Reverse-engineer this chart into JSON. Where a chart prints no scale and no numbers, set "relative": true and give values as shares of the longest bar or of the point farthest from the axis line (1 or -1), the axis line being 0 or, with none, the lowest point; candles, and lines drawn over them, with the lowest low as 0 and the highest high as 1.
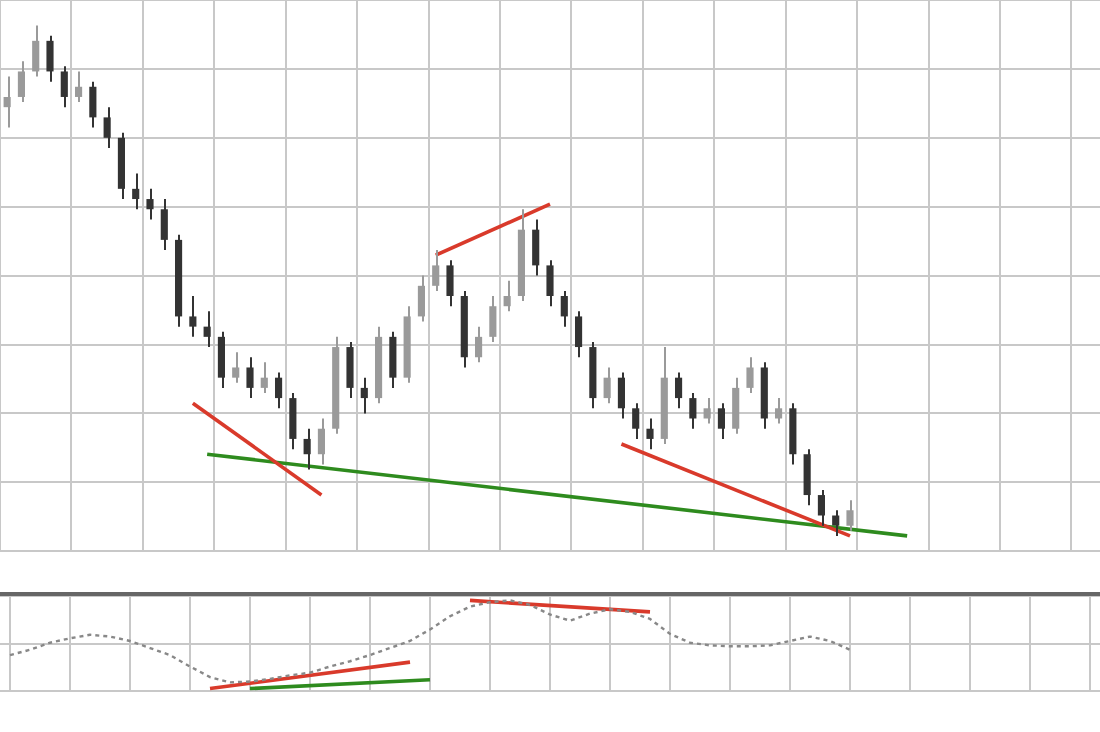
{
  "chart_data": [
    {
      "type": "candlestick",
      "relative": true,
      "grid": true,
      "legend": false,
      "colors": [
        "#9a9a9a",
        "#9a9a9a",
        "#9a9a9a",
        "#333333",
        "#333333",
        "#9a9a9a",
        "#333333",
        "#333333",
        "#333333",
        "#333333",
        "#333333",
        "#333333",
        "#333333",
        "#333333",
        "#333333",
        "#333333",
        "#9a9a9a",
        "#333333",
        "#9a9a9a",
        "#333333",
        "#333333",
        "#333333",
        "#9a9a9a",
        "#9a9a9a",
        "#333333",
        "#333333",
        "#9a9a9a",
        "#333333",
        "#9a9a9a",
        "#9a9a9a",
        "#9a9a9a",
        "#333333",
        "#333333",
        "#9a9a9a",
        "#9a9a9a",
        "#9a9a9a",
        "#9a9a9a",
        "#333333",
        "#333333",
        "#333333",
        "#333333",
        "#333333",
        "#9a9a9a",
        "#333333",
        "#333333",
        "#333333",
        "#9a9a9a",
        "#333333",
        "#333333",
        "#9a9a9a",
        "#333333",
        "#9a9a9a",
        "#9a9a9a",
        "#333333",
        "#9a9a9a",
        "#333333",
        "#333333",
        "#333333",
        "#333333",
        "#9a9a9a",
        null,
        null,
        null,
        null,
        null,
        null,
        null,
        null,
        null,
        null,
        null,
        null,
        null,
        null,
        null,
        null,
        null
      ],
      "categories": [
        null,
        null,
        null,
        null,
        null,
        null,
        null,
        null,
        null,
        null,
        null,
        null,
        null,
        null,
        null,
        null,
        null,
        null,
        null,
        null,
        null,
        null,
        null,
        null,
        null,
        null,
        null,
        null,
        null,
        null,
        null,
        null,
        null,
        null,
        null,
        null,
        null,
        null,
        null,
        null,
        null,
        null,
        null,
        null,
        null,
        null,
        null,
        null,
        null,
        null,
        null,
        null,
        null,
        null,
        null,
        null,
        null,
        null,
        null,
        null,
        null,
        null,
        null,
        null,
        null,
        null,
        null,
        null,
        null,
        null,
        null,
        null,
        null,
        null,
        null,
        null,
        null
      ],
      "ohlc": [
        [
          0.84,
          0.9,
          0.8,
          0.86
        ],
        [
          0.86,
          0.93,
          0.85,
          0.91
        ],
        [
          0.91,
          1.0,
          0.9,
          0.97
        ],
        [
          0.97,
          0.98,
          0.89,
          0.91
        ],
        [
          0.91,
          0.92,
          0.84,
          0.86
        ],
        [
          0.86,
          0.91,
          0.85,
          0.88
        ],
        [
          0.88,
          0.89,
          0.8,
          0.82
        ],
        [
          0.82,
          0.84,
          0.76,
          0.78
        ],
        [
          0.78,
          0.79,
          0.66,
          0.68
        ],
        [
          0.68,
          0.71,
          0.64,
          0.66
        ],
        [
          0.66,
          0.68,
          0.62,
          0.64
        ],
        [
          0.64,
          0.66,
          0.56,
          0.58
        ],
        [
          0.58,
          0.59,
          0.41,
          0.43
        ],
        [
          0.43,
          0.47,
          0.39,
          0.41
        ],
        [
          0.41,
          0.44,
          0.37,
          0.39
        ],
        [
          0.39,
          0.4,
          0.29,
          0.31
        ],
        [
          0.31,
          0.36,
          0.3,
          0.33
        ],
        [
          0.33,
          0.35,
          0.27,
          0.29
        ],
        [
          0.29,
          0.34,
          0.28,
          0.31
        ],
        [
          0.31,
          0.32,
          0.25,
          0.27
        ],
        [
          0.27,
          0.28,
          0.17,
          0.19
        ],
        [
          0.19,
          0.21,
          0.13,
          0.16
        ],
        [
          0.16,
          0.23,
          0.14,
          0.21
        ],
        [
          0.21,
          0.39,
          0.2,
          0.37
        ],
        [
          0.37,
          0.38,
          0.27,
          0.29
        ],
        [
          0.29,
          0.31,
          0.24,
          0.27
        ],
        [
          0.27,
          0.41,
          0.26,
          0.39
        ],
        [
          0.39,
          0.4,
          0.29,
          0.31
        ],
        [
          0.31,
          0.45,
          0.3,
          0.43
        ],
        [
          0.43,
          0.51,
          0.42,
          0.49
        ],
        [
          0.49,
          0.56,
          0.48,
          0.53
        ],
        [
          0.53,
          0.54,
          0.45,
          0.47
        ],
        [
          0.47,
          0.48,
          0.33,
          0.35
        ],
        [
          0.35,
          0.41,
          0.34,
          0.39
        ],
        [
          0.39,
          0.47,
          0.38,
          0.45
        ],
        [
          0.45,
          0.5,
          0.44,
          0.47
        ],
        [
          0.47,
          0.64,
          0.46,
          0.6
        ],
        [
          0.6,
          0.62,
          0.51,
          0.53
        ],
        [
          0.53,
          0.54,
          0.45,
          0.47
        ],
        [
          0.47,
          0.48,
          0.41,
          0.43
        ],
        [
          0.43,
          0.44,
          0.35,
          0.37
        ],
        [
          0.37,
          0.38,
          0.25,
          0.27
        ],
        [
          0.27,
          0.33,
          0.26,
          0.31
        ],
        [
          0.31,
          0.32,
          0.23,
          0.25
        ],
        [
          0.25,
          0.26,
          0.19,
          0.21
        ],
        [
          0.21,
          0.23,
          0.17,
          0.19
        ],
        [
          0.19,
          0.37,
          0.18,
          0.31
        ],
        [
          0.31,
          0.32,
          0.25,
          0.27
        ],
        [
          0.27,
          0.28,
          0.21,
          0.23
        ],
        [
          0.23,
          0.27,
          0.22,
          0.25
        ],
        [
          0.25,
          0.26,
          0.19,
          0.21
        ],
        [
          0.21,
          0.31,
          0.2,
          0.29
        ],
        [
          0.29,
          0.35,
          0.28,
          0.33
        ],
        [
          0.33,
          0.34,
          0.21,
          0.23
        ],
        [
          0.23,
          0.27,
          0.22,
          0.25
        ],
        [
          0.25,
          0.26,
          0.14,
          0.16
        ],
        [
          0.16,
          0.17,
          0.06,
          0.08
        ],
        [
          0.08,
          0.09,
          0.02,
          0.04
        ],
        [
          0.04,
          0.05,
          0.0,
          0.02
        ],
        [
          0.02,
          0.07,
          0.01,
          0.05
        ],
        null,
        null,
        null,
        null,
        null,
        null,
        null,
        null,
        null,
        null,
        null,
        null,
        null,
        null,
        null,
        null,
        null
      ],
      "series": [
        {
          "type": "line",
          "color": "#d93a2b",
          "values": [
            null,
            null,
            null,
            null,
            null,
            null,
            null,
            null,
            null,
            null,
            null,
            null,
            null,
            0.26,
            null,
            null,
            null,
            null,
            null,
            null,
            null,
            null,
            0.08,
            null,
            null,
            null,
            null,
            null,
            null,
            null,
            null,
            null,
            null,
            null,
            null,
            null,
            null,
            null,
            null,
            null,
            null,
            null,
            null,
            null,
            null,
            null,
            null,
            null,
            null,
            null,
            null,
            null,
            null,
            null,
            null,
            null,
            null,
            null,
            null,
            null,
            null,
            null,
            null,
            null,
            null,
            null,
            null,
            null,
            null,
            null,
            null,
            null,
            null,
            null,
            null,
            null,
            null
          ]
        },
        {
          "type": "line",
          "color": "#d93a2b",
          "values": [
            null,
            null,
            null,
            null,
            null,
            null,
            null,
            null,
            null,
            null,
            null,
            null,
            null,
            null,
            null,
            null,
            null,
            null,
            null,
            null,
            null,
            null,
            null,
            null,
            null,
            null,
            null,
            null,
            null,
            null,
            0.55,
            null,
            null,
            null,
            null,
            null,
            null,
            null,
            0.65,
            null,
            null,
            null,
            null,
            null,
            null,
            null,
            null,
            null,
            null,
            null,
            null,
            null,
            null,
            null,
            null,
            null,
            null,
            null,
            null,
            null,
            null,
            null,
            null,
            null,
            null,
            null,
            null,
            null,
            null,
            null,
            null,
            null,
            null,
            null,
            null,
            null,
            null
          ]
        },
        {
          "type": "line",
          "color": "#d93a2b",
          "values": [
            null,
            null,
            null,
            null,
            null,
            null,
            null,
            null,
            null,
            null,
            null,
            null,
            null,
            null,
            null,
            null,
            null,
            null,
            null,
            null,
            null,
            null,
            null,
            null,
            null,
            null,
            null,
            null,
            null,
            null,
            null,
            null,
            null,
            null,
            null,
            null,
            null,
            null,
            null,
            null,
            null,
            null,
            null,
            0.18,
            null,
            null,
            null,
            null,
            null,
            null,
            null,
            null,
            null,
            null,
            null,
            null,
            null,
            null,
            null,
            0.0,
            null,
            null,
            null,
            null,
            null,
            null,
            null,
            null,
            null,
            null,
            null,
            null,
            null,
            null,
            null,
            null,
            null
          ]
        },
        {
          "type": "line",
          "color": "#2e8b1e",
          "values": [
            null,
            null,
            null,
            null,
            null,
            null,
            null,
            null,
            null,
            null,
            null,
            null,
            null,
            null,
            0.16,
            null,
            null,
            null,
            null,
            null,
            null,
            null,
            null,
            null,
            null,
            null,
            null,
            null,
            null,
            null,
            null,
            null,
            null,
            null,
            null,
            null,
            null,
            null,
            null,
            null,
            null,
            null,
            null,
            null,
            null,
            null,
            null,
            null,
            null,
            null,
            null,
            null,
            null,
            null,
            null,
            null,
            null,
            null,
            null,
            null,
            null,
            null,
            null,
            0.0,
            null,
            null,
            null,
            null,
            null,
            null,
            null,
            null,
            null,
            null,
            null,
            null,
            null
          ]
        }
      ]
    },
    {
      "type": "line",
      "relative": true,
      "grid": true,
      "legend": false,
      "categories": [
        null,
        null,
        null,
        null,
        null,
        null,
        null,
        null,
        null,
        null,
        null,
        null,
        null,
        null,
        null,
        null,
        null,
        null,
        null,
        null,
        null,
        null,
        null,
        null,
        null,
        null,
        null,
        null,
        null,
        null,
        null,
        null,
        null,
        null,
        null,
        null,
        null,
        null,
        null,
        null,
        null,
        null,
        null,
        null,
        null,
        null,
        null,
        null,
        null,
        null,
        null,
        null,
        null,
        null,
        null
      ],
      "series": [
        {
          "color": "#888888",
          "line_style": "dotted",
          "values": [
            0.38,
            0.44,
            0.52,
            0.57,
            0.61,
            0.59,
            0.54,
            0.46,
            0.38,
            0.25,
            0.13,
            0.07,
            0.08,
            0.11,
            0.15,
            0.18,
            0.25,
            0.31,
            0.38,
            0.46,
            0.54,
            0.67,
            0.82,
            0.93,
            0.98,
            1.0,
            0.95,
            0.84,
            0.77,
            0.85,
            0.9,
            0.87,
            0.79,
            0.62,
            0.52,
            0.49,
            0.48,
            0.48,
            0.49,
            0.54,
            0.59,
            0.54,
            0.44,
            null,
            null,
            null,
            null,
            null,
            null,
            null,
            null,
            null,
            null,
            null,
            null
          ]
        },
        {
          "color": "#d93a2b",
          "line_style": "solid",
          "values": [
            null,
            null,
            null,
            null,
            null,
            null,
            null,
            null,
            null,
            null,
            null,
            null,
            null,
            null,
            null,
            null,
            null,
            null,
            null,
            null,
            null,
            null,
            null,
            1.0,
            null,
            null,
            null,
            null,
            null,
            null,
            null,
            null,
            0.87,
            null,
            null,
            null,
            null,
            null,
            null,
            null,
            null,
            null,
            null,
            null,
            null,
            null,
            null,
            null,
            null,
            null,
            null,
            null,
            null,
            null,
            null
          ]
        },
        {
          "color": "#d93a2b",
          "line_style": "solid",
          "values": [
            null,
            null,
            null,
            null,
            null,
            null,
            null,
            null,
            null,
            null,
            0.0,
            null,
            null,
            null,
            null,
            null,
            null,
            null,
            null,
            null,
            0.3,
            null,
            null,
            null,
            null,
            null,
            null,
            null,
            null,
            null,
            null,
            null,
            null,
            null,
            null,
            null,
            null,
            null,
            null,
            null,
            null,
            null,
            null,
            null,
            null,
            null,
            null,
            null,
            null,
            null,
            null,
            null,
            null,
            null,
            null
          ]
        },
        {
          "color": "#2e8b1e",
          "line_style": "solid",
          "values": [
            null,
            null,
            null,
            null,
            null,
            null,
            null,
            null,
            null,
            null,
            null,
            null,
            0.0,
            null,
            null,
            null,
            null,
            null,
            null,
            null,
            null,
            0.1,
            null,
            null,
            null,
            null,
            null,
            null,
            null,
            null,
            null,
            null,
            null,
            null,
            null,
            null,
            null,
            null,
            null,
            null,
            null,
            null,
            null,
            null,
            null,
            null,
            null,
            null,
            null,
            null,
            null,
            null,
            null,
            null,
            null
          ]
        }
      ]
    }
  ]
}
